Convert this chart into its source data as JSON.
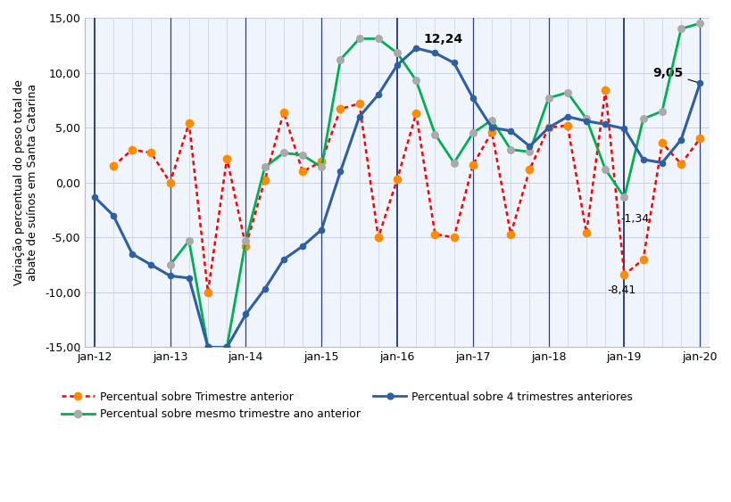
{
  "ylabel": "Variação percentual do peso total de\nabate de suínos em Santa Catarina",
  "ylim": [
    -15,
    15
  ],
  "yticks": [
    -15,
    -10,
    -5,
    0,
    5,
    10,
    15
  ],
  "bg_axes": "#f0f4fc",
  "bg_fig": "#ffffff",
  "grid_color": "#c5cfe8",
  "quarters": [
    "jan-12",
    "abr-12",
    "jul-12",
    "out-12",
    "jan-13",
    "abr-13",
    "jul-13",
    "out-13",
    "jan-14",
    "abr-14",
    "jul-14",
    "out-14",
    "jan-15",
    "abr-15",
    "jul-15",
    "out-15",
    "jan-16",
    "abr-16",
    "jul-16",
    "out-16",
    "jan-17",
    "abr-17",
    "jul-17",
    "out-17",
    "jan-18",
    "abr-18",
    "jul-18",
    "out-18",
    "jan-19",
    "abr-19",
    "jul-19",
    "out-19",
    "jan-20"
  ],
  "series_trimestre": [
    null,
    1.5,
    3.0,
    2.7,
    0.0,
    5.4,
    -10.0,
    2.2,
    -5.8,
    0.2,
    6.4,
    1.0,
    1.9,
    6.7,
    7.2,
    -5.0,
    0.3,
    6.3,
    -4.7,
    -5.0,
    1.6,
    4.6,
    -4.7,
    1.2,
    5.0,
    5.2,
    -4.6,
    8.4,
    -8.41,
    -7.0,
    3.6,
    1.7,
    4.0
  ],
  "series_mesmo_trimestre": [
    null,
    null,
    null,
    null,
    -7.5,
    -5.3,
    -15.0,
    -15.0,
    -5.3,
    1.4,
    2.7,
    2.5,
    1.4,
    11.2,
    13.1,
    13.1,
    11.8,
    9.3,
    4.4,
    1.8,
    4.5,
    5.7,
    3.0,
    2.8,
    7.7,
    8.2,
    5.8,
    1.2,
    -1.34,
    5.8,
    6.5,
    14.0,
    14.5
  ],
  "series_4trimestres": [
    -1.3,
    -3.0,
    -6.5,
    -7.5,
    -8.5,
    -8.7,
    -15.0,
    -15.0,
    -12.0,
    -9.7,
    -7.0,
    -5.8,
    -4.3,
    1.0,
    6.0,
    8.0,
    10.7,
    12.24,
    11.8,
    10.9,
    7.7,
    5.0,
    4.7,
    3.3,
    5.0,
    6.0,
    5.6,
    5.3,
    4.9,
    2.1,
    1.8,
    3.9,
    9.05
  ],
  "color_trimestre": "#ff0000",
  "color_mesmo": "#00b050",
  "color_4trimestres": "#2e5fa3",
  "color_mesmo_marker": "#aaaaaa",
  "color_trimestre_marker": "#ff8c00",
  "vlines_x": [
    0,
    4,
    8,
    12,
    16,
    20,
    24,
    28,
    32
  ],
  "vline_color": "#2e4080",
  "vline_strong": [
    0,
    16,
    28
  ],
  "xtick_positions": [
    0,
    4,
    8,
    12,
    16,
    20,
    24,
    28,
    32
  ],
  "xtick_labels": [
    "jan-12",
    "jan-13",
    "jan-14",
    "jan-15",
    "jan-16",
    "jan-17",
    "jan-18",
    "jan-19",
    "jan-20"
  ],
  "legend_trimestre": "Percentual sobre Trimestre anterior",
  "legend_mesmo": "Percentual sobre mesmo trimestre ano anterior",
  "legend_4trimestres": "Percentual sobre 4 trimestres anteriores"
}
